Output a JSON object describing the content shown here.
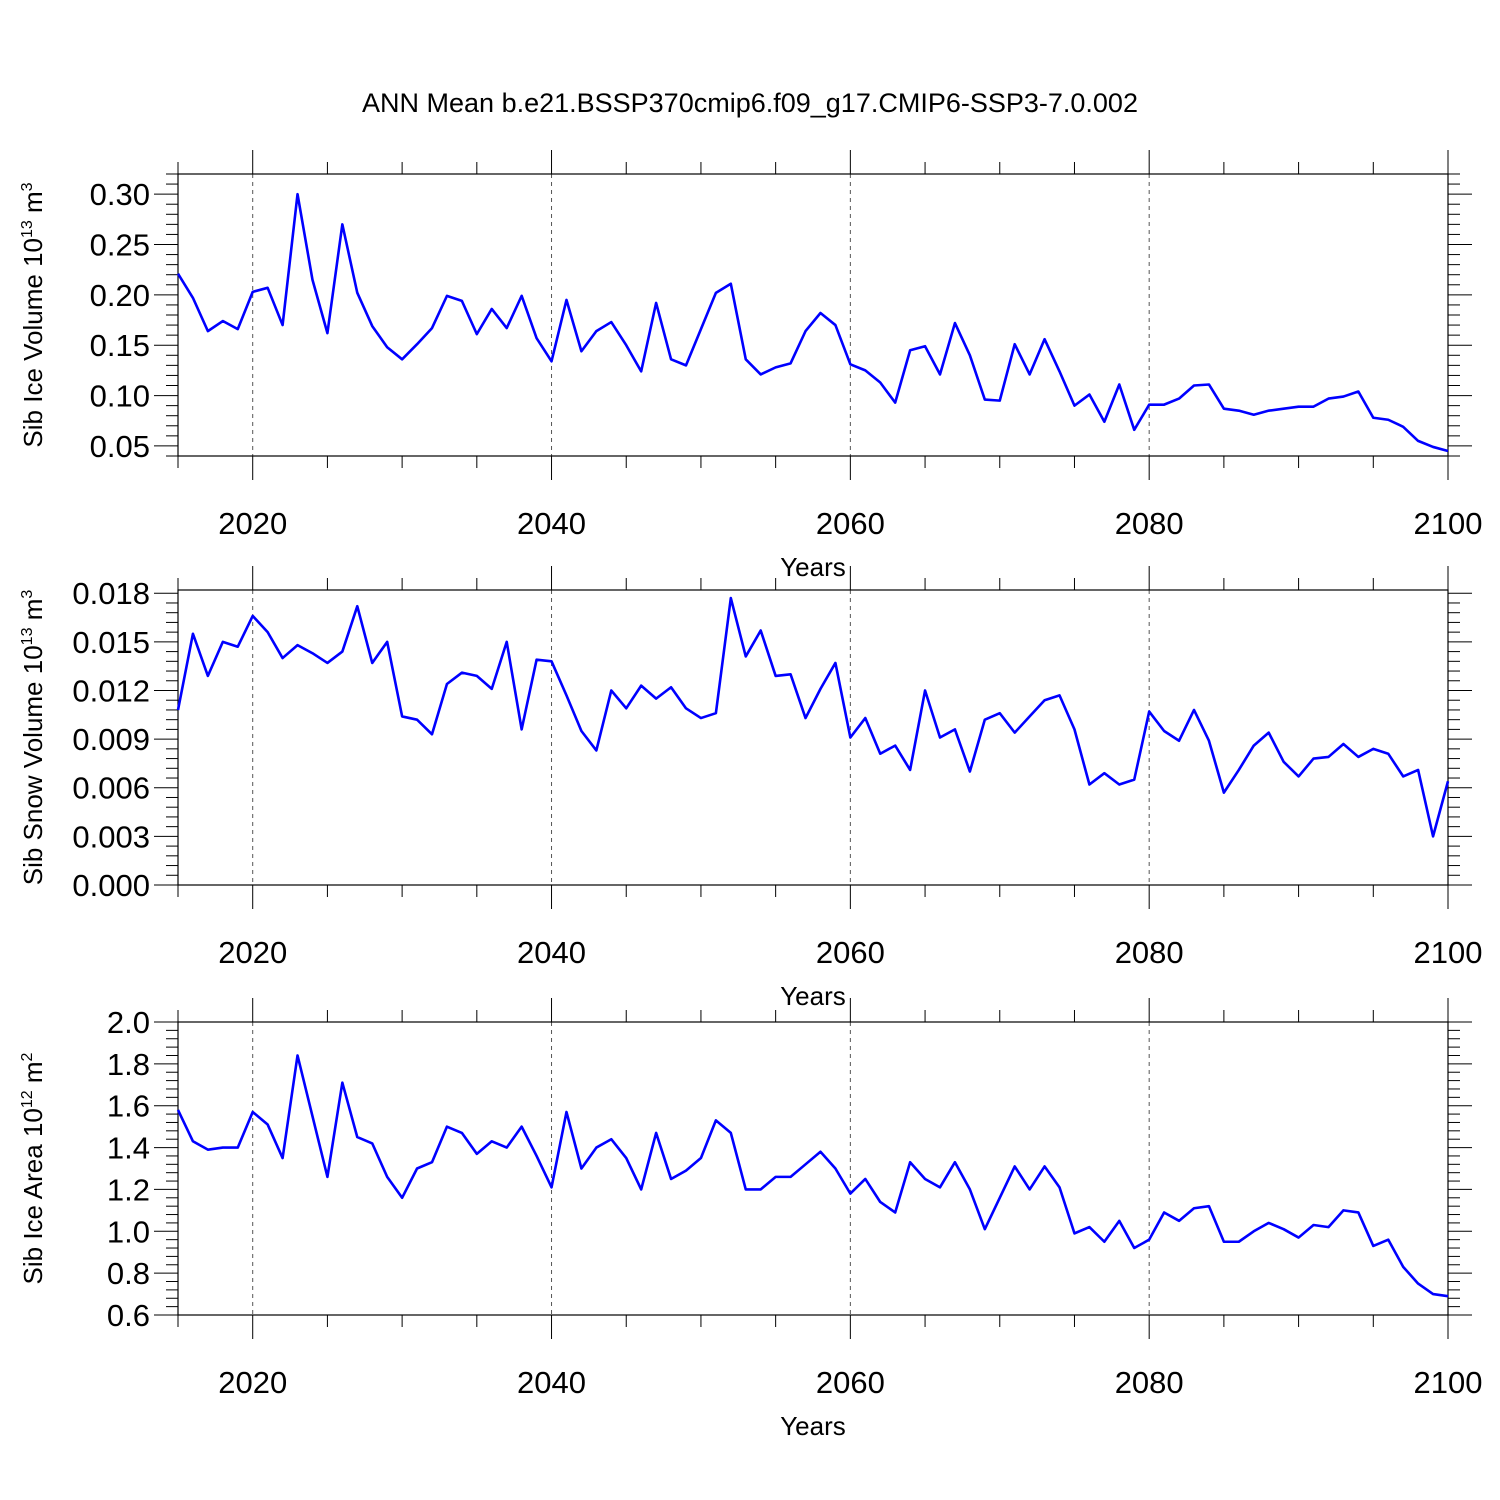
{
  "title": "ANN Mean b.e21.BSSP370cmip6.f09_g17.CMIP6-SSP3-7.0.002",
  "line_color": "#0000ff",
  "chart_data": [
    {
      "type": "line",
      "ylabel_text": "Sib Ice Volume 10",
      "ylabel_exp": "13",
      "ylabel_unit": "m",
      "ylabel_unit_exp": "3",
      "xlabel": "Years",
      "xlim": [
        2015,
        2100
      ],
      "ylim": [
        0.04,
        0.32
      ],
      "yticks": [
        "0.05",
        "0.10",
        "0.15",
        "0.20",
        "0.25",
        "0.30"
      ],
      "ytick_values": [
        0.05,
        0.1,
        0.15,
        0.2,
        0.25,
        0.3
      ],
      "xticks": [
        "2020",
        "2040",
        "2060",
        "2080",
        "2100"
      ],
      "xtick_values": [
        2020,
        2040,
        2060,
        2080,
        2100
      ],
      "grid": "dashed vertical at major x ticks",
      "x": [
        2015,
        2016,
        2017,
        2018,
        2019,
        2020,
        2021,
        2022,
        2023,
        2024,
        2025,
        2026,
        2027,
        2028,
        2029,
        2030,
        2031,
        2032,
        2033,
        2034,
        2035,
        2036,
        2037,
        2038,
        2039,
        2040,
        2041,
        2042,
        2043,
        2044,
        2045,
        2046,
        2047,
        2048,
        2049,
        2050,
        2051,
        2052,
        2053,
        2054,
        2055,
        2056,
        2057,
        2058,
        2059,
        2060,
        2061,
        2062,
        2063,
        2064,
        2065,
        2066,
        2067,
        2068,
        2069,
        2070,
        2071,
        2072,
        2073,
        2074,
        2075,
        2076,
        2077,
        2078,
        2079,
        2080,
        2081,
        2082,
        2083,
        2084,
        2085,
        2086,
        2087,
        2088,
        2089,
        2090,
        2091,
        2092,
        2093,
        2094,
        2095,
        2096,
        2097,
        2098,
        2099,
        2100
      ],
      "y": [
        0.221,
        0.197,
        0.164,
        0.174,
        0.166,
        0.203,
        0.207,
        0.17,
        0.3,
        0.215,
        0.162,
        0.27,
        0.202,
        0.169,
        0.148,
        0.136,
        0.151,
        0.167,
        0.199,
        0.194,
        0.161,
        0.186,
        0.167,
        0.199,
        0.157,
        0.134,
        0.195,
        0.144,
        0.164,
        0.173,
        0.15,
        0.124,
        0.192,
        0.136,
        0.13,
        0.166,
        0.202,
        0.211,
        0.136,
        0.121,
        0.128,
        0.132,
        0.164,
        0.182,
        0.17,
        0.131,
        0.125,
        0.113,
        0.093,
        0.145,
        0.149,
        0.121,
        0.172,
        0.14,
        0.096,
        0.095,
        0.151,
        0.121,
        0.156,
        0.124,
        0.09,
        0.101,
        0.074,
        0.111,
        0.066,
        0.091,
        0.091,
        0.097,
        0.11,
        0.111,
        0.087,
        0.085,
        0.081,
        0.085,
        0.087,
        0.089,
        0.089,
        0.097,
        0.099,
        0.104,
        0.078,
        0.076,
        0.069,
        0.055,
        0.049,
        0.045
      ]
    },
    {
      "type": "line",
      "ylabel_text": "Sib Snow Volume 10",
      "ylabel_exp": "13",
      "ylabel_unit": "m",
      "ylabel_unit_exp": "3",
      "xlabel": "Years",
      "xlim": [
        2015,
        2100
      ],
      "ylim": [
        0.0,
        0.0182
      ],
      "yticks": [
        "0.000",
        "0.003",
        "0.006",
        "0.009",
        "0.012",
        "0.015",
        "0.018"
      ],
      "ytick_values": [
        0.0,
        0.003,
        0.006,
        0.009,
        0.012,
        0.015,
        0.018
      ],
      "xticks": [
        "2020",
        "2040",
        "2060",
        "2080",
        "2100"
      ],
      "xtick_values": [
        2020,
        2040,
        2060,
        2080,
        2100
      ],
      "grid": "dashed vertical at major x ticks",
      "x": [
        2015,
        2016,
        2017,
        2018,
        2019,
        2020,
        2021,
        2022,
        2023,
        2024,
        2025,
        2026,
        2027,
        2028,
        2029,
        2030,
        2031,
        2032,
        2033,
        2034,
        2035,
        2036,
        2037,
        2038,
        2039,
        2040,
        2041,
        2042,
        2043,
        2044,
        2045,
        2046,
        2047,
        2048,
        2049,
        2050,
        2051,
        2052,
        2053,
        2054,
        2055,
        2056,
        2057,
        2058,
        2059,
        2060,
        2061,
        2062,
        2063,
        2064,
        2065,
        2066,
        2067,
        2068,
        2069,
        2070,
        2071,
        2072,
        2073,
        2074,
        2075,
        2076,
        2077,
        2078,
        2079,
        2080,
        2081,
        2082,
        2083,
        2084,
        2085,
        2086,
        2087,
        2088,
        2089,
        2090,
        2091,
        2092,
        2093,
        2094,
        2095,
        2096,
        2097,
        2098,
        2099,
        2100
      ],
      "y": [
        0.0108,
        0.0155,
        0.0129,
        0.015,
        0.0147,
        0.0166,
        0.0156,
        0.014,
        0.0148,
        0.0143,
        0.0137,
        0.0144,
        0.0172,
        0.0137,
        0.015,
        0.0104,
        0.0102,
        0.0093,
        0.0124,
        0.0131,
        0.0129,
        0.0121,
        0.015,
        0.0096,
        0.0139,
        0.0138,
        0.0117,
        0.0095,
        0.0083,
        0.012,
        0.0109,
        0.0123,
        0.0115,
        0.0122,
        0.0109,
        0.0103,
        0.0106,
        0.0177,
        0.0141,
        0.0157,
        0.0129,
        0.013,
        0.0103,
        0.0121,
        0.0137,
        0.0091,
        0.0103,
        0.0081,
        0.0086,
        0.0071,
        0.012,
        0.0091,
        0.0096,
        0.007,
        0.0102,
        0.0106,
        0.0094,
        0.0104,
        0.0114,
        0.0117,
        0.0096,
        0.0062,
        0.0069,
        0.0062,
        0.0065,
        0.0107,
        0.0095,
        0.0089,
        0.0108,
        0.0089,
        0.0057,
        0.0071,
        0.0086,
        0.0094,
        0.0076,
        0.0067,
        0.0078,
        0.0079,
        0.0087,
        0.0079,
        0.0084,
        0.0081,
        0.0067,
        0.0071,
        0.003,
        0.0064
      ]
    },
    {
      "type": "line",
      "ylabel_text": "Sib Ice Area 10",
      "ylabel_exp": "12",
      "ylabel_unit": "m",
      "ylabel_unit_exp": "2",
      "xlabel": "Years",
      "xlim": [
        2015,
        2100
      ],
      "ylim": [
        0.6,
        2.0
      ],
      "yticks": [
        "0.6",
        "0.8",
        "1.0",
        "1.2",
        "1.4",
        "1.6",
        "1.8",
        "2.0"
      ],
      "ytick_values": [
        0.6,
        0.8,
        1.0,
        1.2,
        1.4,
        1.6,
        1.8,
        2.0
      ],
      "xticks": [
        "2020",
        "2040",
        "2060",
        "2080",
        "2100"
      ],
      "xtick_values": [
        2020,
        2040,
        2060,
        2080,
        2100
      ],
      "grid": "dashed vertical at major x ticks",
      "x": [
        2015,
        2016,
        2017,
        2018,
        2019,
        2020,
        2021,
        2022,
        2023,
        2024,
        2025,
        2026,
        2027,
        2028,
        2029,
        2030,
        2031,
        2032,
        2033,
        2034,
        2035,
        2036,
        2037,
        2038,
        2039,
        2040,
        2041,
        2042,
        2043,
        2044,
        2045,
        2046,
        2047,
        2048,
        2049,
        2050,
        2051,
        2052,
        2053,
        2054,
        2055,
        2056,
        2057,
        2058,
        2059,
        2060,
        2061,
        2062,
        2063,
        2064,
        2065,
        2066,
        2067,
        2068,
        2069,
        2070,
        2071,
        2072,
        2073,
        2074,
        2075,
        2076,
        2077,
        2078,
        2079,
        2080,
        2081,
        2082,
        2083,
        2084,
        2085,
        2086,
        2087,
        2088,
        2089,
        2090,
        2091,
        2092,
        2093,
        2094,
        2095,
        2096,
        2097,
        2098,
        2099,
        2100
      ],
      "y": [
        1.58,
        1.43,
        1.39,
        1.4,
        1.4,
        1.57,
        1.51,
        1.35,
        1.84,
        1.55,
        1.26,
        1.71,
        1.45,
        1.42,
        1.26,
        1.16,
        1.3,
        1.33,
        1.5,
        1.47,
        1.37,
        1.43,
        1.4,
        1.5,
        1.36,
        1.21,
        1.57,
        1.3,
        1.4,
        1.44,
        1.35,
        1.2,
        1.47,
        1.25,
        1.29,
        1.35,
        1.53,
        1.47,
        1.2,
        1.2,
        1.26,
        1.26,
        1.32,
        1.38,
        1.3,
        1.18,
        1.25,
        1.14,
        1.09,
        1.33,
        1.25,
        1.21,
        1.33,
        1.2,
        1.01,
        1.16,
        1.31,
        1.2,
        1.31,
        1.21,
        0.99,
        1.02,
        0.95,
        1.05,
        0.92,
        0.96,
        1.09,
        1.05,
        1.11,
        1.12,
        0.95,
        0.95,
        1.0,
        1.04,
        1.01,
        0.97,
        1.03,
        1.02,
        1.1,
        1.09,
        0.93,
        0.96,
        0.83,
        0.75,
        0.7,
        0.69
      ]
    }
  ]
}
